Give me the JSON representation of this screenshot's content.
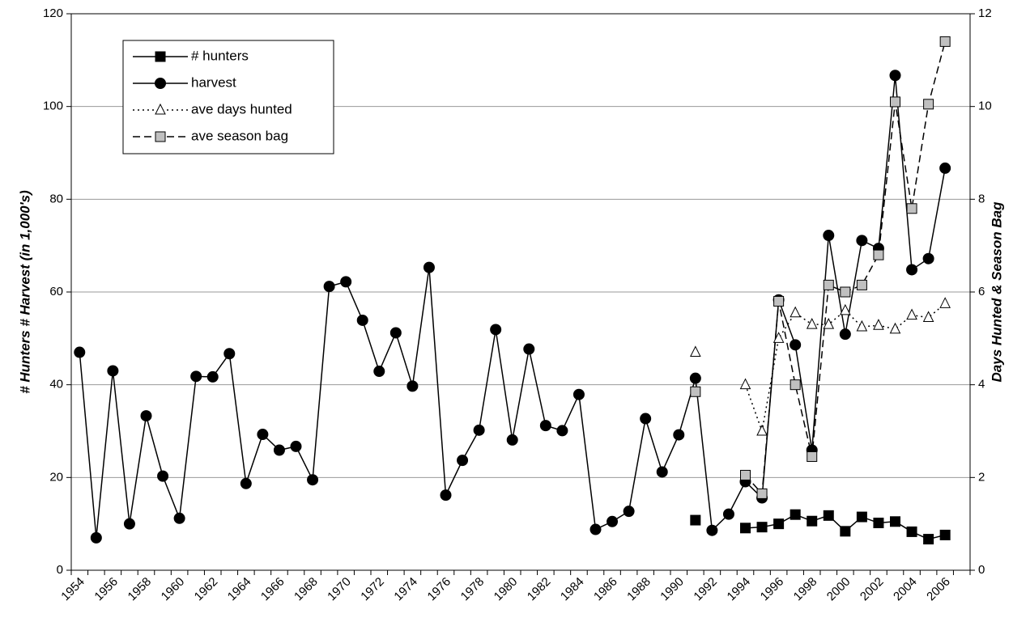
{
  "chart_data": {
    "type": "line",
    "ylabel": "# Hunters # Harvest (in 1,000's)",
    "y2label": "Days Hunted & Season Bag",
    "categories": [
      "1954",
      null,
      "1956",
      null,
      "1958",
      null,
      "1960",
      null,
      "1962",
      null,
      "1964",
      null,
      "1966",
      null,
      "1968",
      null,
      "1970",
      null,
      "1972",
      null,
      "1974",
      null,
      "1976",
      null,
      "1978",
      null,
      "1980",
      null,
      "1982",
      null,
      "1984",
      null,
      "1986",
      null,
      "1988",
      null,
      "1990",
      null,
      "1992",
      null,
      "1994",
      null,
      "1996",
      null,
      "1998",
      null,
      "2000",
      null,
      "2002",
      null,
      "2004",
      null,
      "2006",
      null
    ],
    "ylim": [
      0,
      120
    ],
    "yticks": [
      0,
      20,
      40,
      60,
      80,
      100,
      120
    ],
    "y2lim": [
      0,
      12
    ],
    "y2ticks": [
      0,
      2,
      4,
      6,
      8,
      10,
      12
    ],
    "grid": true,
    "legend": "upper left",
    "series": [
      {
        "name": "# hunters",
        "color": "#000000",
        "marker": "square",
        "marker_fill": "#000000",
        "dash": "solid",
        "values": [
          null,
          null,
          null,
          null,
          null,
          null,
          null,
          null,
          null,
          null,
          null,
          null,
          null,
          null,
          null,
          null,
          null,
          null,
          null,
          null,
          null,
          null,
          null,
          null,
          null,
          null,
          null,
          null,
          null,
          null,
          null,
          null,
          null,
          null,
          null,
          null,
          null,
          10.8,
          null,
          null,
          9.1,
          9.3,
          10.0,
          12.0,
          10.6,
          11.8,
          8.4,
          11.5,
          10.2,
          10.5,
          8.3,
          6.7,
          7.6,
          null
        ]
      },
      {
        "name": "harvest",
        "color": "#000000",
        "marker": "circle",
        "marker_fill": "#000000",
        "dash": "solid",
        "values": [
          47,
          7,
          43,
          10,
          33.3,
          20.3,
          11.2,
          41.8,
          41.7,
          46.7,
          18.7,
          29.3,
          25.9,
          26.7,
          19.5,
          61.2,
          62.2,
          53.9,
          42.9,
          51.2,
          39.7,
          65.3,
          16.2,
          23.7,
          30.2,
          51.9,
          28.1,
          47.7,
          31.2,
          30.1,
          37.9,
          8.8,
          10.5,
          12.7,
          32.7,
          21.2,
          29.2,
          41.4,
          8.6,
          12.1,
          19.1,
          15.6,
          58.3,
          48.6,
          25.9,
          72.2,
          50.9,
          71.1,
          69.4,
          106.7,
          64.8,
          67.2,
          86.7,
          null
        ]
      },
      {
        "name": "ave days hunted",
        "color": "#000000",
        "marker": "triangle",
        "marker_fill": "#ffffff",
        "dash": "dotted",
        "axis": "y2",
        "values": [
          null,
          null,
          null,
          null,
          null,
          null,
          null,
          null,
          null,
          null,
          null,
          null,
          null,
          null,
          null,
          null,
          null,
          null,
          null,
          null,
          null,
          null,
          null,
          null,
          null,
          null,
          null,
          null,
          null,
          null,
          null,
          null,
          null,
          null,
          null,
          null,
          null,
          4.7,
          null,
          null,
          4.0,
          3.0,
          5.0,
          5.55,
          5.3,
          5.3,
          5.6,
          5.25,
          5.28,
          5.2,
          5.5,
          5.45,
          5.75,
          null
        ]
      },
      {
        "name": "ave season bag",
        "color": "#000000",
        "marker": "square",
        "marker_fill": "#c0c0c0",
        "dash": "dashed",
        "axis": "y2",
        "values": [
          null,
          null,
          null,
          null,
          null,
          null,
          null,
          null,
          null,
          null,
          null,
          null,
          null,
          null,
          null,
          null,
          null,
          null,
          null,
          null,
          null,
          null,
          null,
          null,
          null,
          null,
          null,
          null,
          null,
          null,
          null,
          null,
          null,
          null,
          null,
          null,
          null,
          3.85,
          null,
          null,
          2.05,
          1.65,
          5.8,
          4.0,
          2.45,
          6.15,
          6.0,
          6.15,
          6.8,
          10.1,
          7.8,
          10.05,
          11.4,
          null
        ]
      }
    ]
  }
}
